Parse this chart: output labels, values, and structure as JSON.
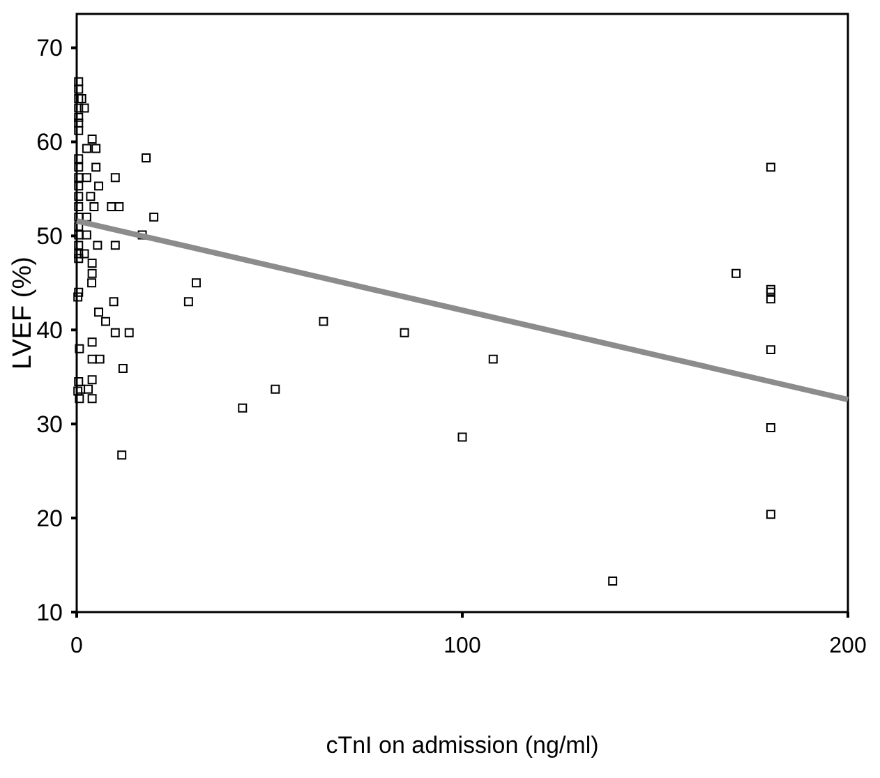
{
  "chart_data": {
    "type": "scatter",
    "xlabel": "cTnI on admission (ng/ml)",
    "ylabel": "LVEF (%)",
    "xlim": [
      0,
      200
    ],
    "ylim": [
      10,
      73.6
    ],
    "xticks": [
      0,
      100,
      200
    ],
    "yticks": [
      10,
      20,
      30,
      40,
      50,
      60,
      70
    ],
    "grid": false,
    "series": [
      {
        "color": "#000000",
        "marker": "square",
        "x": [
          0.5,
          0.5,
          0.5,
          0.5,
          0.5,
          0.5,
          0.5,
          0.5,
          0.5,
          0.5,
          0.5,
          0.5,
          0.5,
          0.5,
          0.5,
          0.5,
          0.5,
          0.5,
          0.5,
          0.5,
          0.3,
          0.7,
          0.5,
          0.3,
          4,
          5.7,
          7.5,
          10,
          13.6,
          4,
          6,
          12,
          4,
          1,
          3,
          0.7,
          4,
          11.7,
          43,
          51.5,
          18,
          10,
          9,
          11,
          20,
          17,
          5.4,
          10,
          31,
          29,
          9.6,
          4,
          4,
          3.9,
          4,
          2.6,
          5,
          5,
          2.6,
          5.7,
          3.6,
          4.5,
          2.6,
          2.6,
          2,
          2,
          1.3,
          64,
          85,
          108,
          100,
          139,
          171,
          180,
          180,
          180,
          180,
          180,
          180,
          180
        ],
        "values": [
          66.4,
          65.6,
          64.6,
          63.6,
          62.6,
          62,
          61.2,
          58.2,
          57.3,
          56.2,
          55.3,
          54.2,
          53.1,
          52,
          51,
          50.1,
          49,
          48.1,
          47.6,
          44,
          43.5,
          38,
          34.5,
          33.5,
          38.7,
          41.9,
          40.9,
          39.7,
          39.7,
          36.9,
          36.9,
          35.9,
          34.7,
          33.7,
          33.7,
          32.7,
          32.7,
          26.7,
          31.7,
          33.7,
          58.3,
          56.2,
          53.1,
          53.1,
          52,
          50.1,
          49,
          49,
          45,
          43,
          43,
          47.1,
          46,
          45,
          60.3,
          59.3,
          59.3,
          57.3,
          56.2,
          55.3,
          54.2,
          53.1,
          52,
          50.1,
          48.1,
          63.6,
          64.6,
          40.9,
          39.7,
          36.9,
          28.6,
          13.3,
          46,
          57.3,
          44.3,
          43.3,
          37.9,
          29.6,
          20.4,
          44
        ]
      },
      {
        "type": "line",
        "color": "#8c8c8c",
        "marker": "none",
        "line_style": "solid",
        "x": [
          0,
          200
        ],
        "values": [
          51.6,
          32.6
        ]
      }
    ]
  }
}
